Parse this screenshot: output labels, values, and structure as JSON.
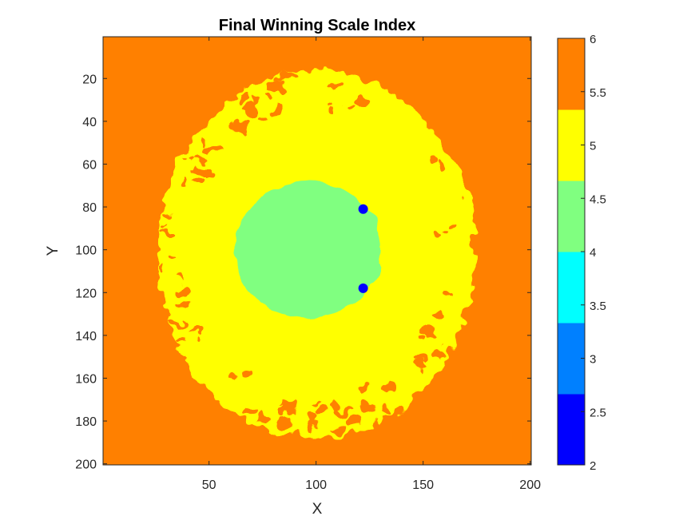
{
  "chart_data": {
    "type": "heatmap",
    "title": "Final Winning Scale Index",
    "xlabel": "X",
    "ylabel": "Y",
    "xlim": [
      1,
      200
    ],
    "ylim": [
      1,
      200
    ],
    "y_reversed": true,
    "x_ticks": [
      50,
      100,
      150,
      200
    ],
    "y_ticks": [
      20,
      40,
      60,
      80,
      100,
      120,
      140,
      160,
      180,
      200
    ],
    "colorbar": {
      "clim": [
        2,
        6
      ],
      "ticks": [
        "2",
        "2.5",
        "3",
        "3.5",
        "4",
        "4.5",
        "5",
        "5.5",
        "6"
      ],
      "levels": [
        {
          "value": 2,
          "color": "#0000ff"
        },
        {
          "value": 3,
          "color": "#0080ff"
        },
        {
          "value": 4,
          "color": "#00ffff"
        },
        {
          "value": 4,
          "color": "#80ff80"
        },
        {
          "value": 5,
          "color": "#ffff00"
        },
        {
          "value": 6,
          "color": "#ff8000"
        }
      ]
    },
    "regions": [
      {
        "name": "background",
        "value": 6,
        "color": "#ff8000"
      },
      {
        "name": "outer ellipse",
        "value": 5,
        "color": "#ffff00",
        "center": [
          100,
          102
        ],
        "radius": [
          74,
          86
        ]
      },
      {
        "name": "inner region",
        "value": 4,
        "color": "#80ff80",
        "center": [
          96,
          100
        ],
        "radius": [
          34,
          32
        ]
      },
      {
        "name": "spot upper",
        "value": 2,
        "color": "#0000ff",
        "center": [
          122,
          81
        ]
      },
      {
        "name": "spot lower",
        "value": 2,
        "color": "#0000ff",
        "center": [
          122,
          118
        ]
      }
    ]
  }
}
